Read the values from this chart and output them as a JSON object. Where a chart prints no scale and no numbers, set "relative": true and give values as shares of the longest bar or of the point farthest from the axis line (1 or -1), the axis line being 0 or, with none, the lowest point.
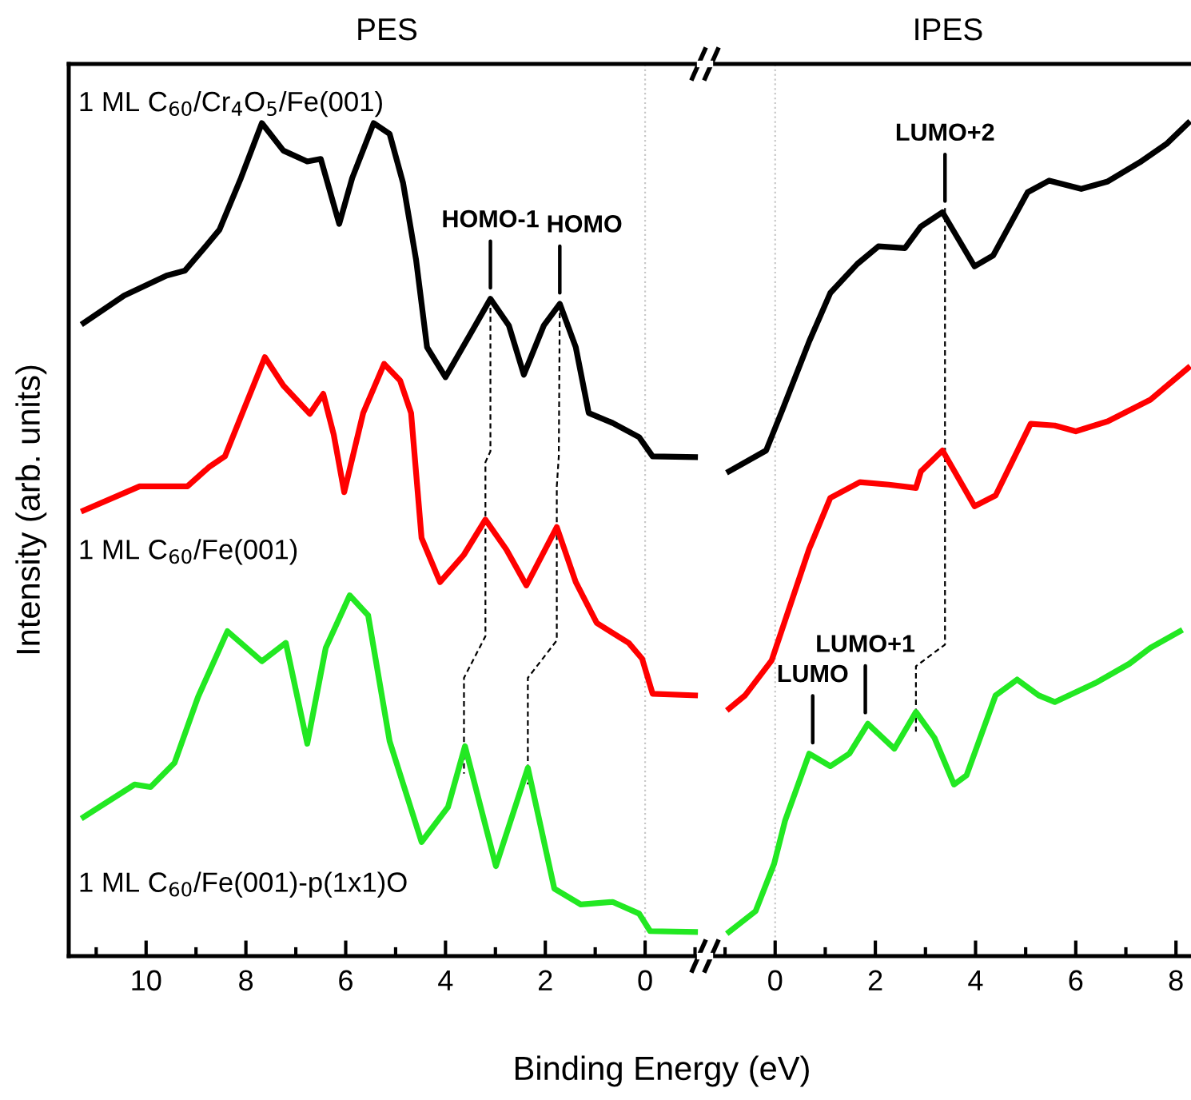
{
  "chart_data": [
    {
      "type": "line",
      "title": "PES",
      "xlabel": "Binding Energy (eV)",
      "ylabel": "Intensity (arb. units)",
      "relative": true,
      "xlim": [
        11.55,
        -1.2
      ],
      "xticks": [
        10,
        8,
        6,
        4,
        2,
        0
      ],
      "tick_labels": "x",
      "legend": false,
      "ref_lines": [
        {
          "axis": "x",
          "value": 0,
          "color": "#c8c8c8",
          "line_style": "dotted"
        }
      ],
      "annotations": [
        {
          "text": "HOMO-1",
          "x": 3.1,
          "y": 0.789
        },
        {
          "text": "HOMO",
          "x": 1.71,
          "y": 0.783
        }
      ],
      "series": [
        {
          "name": "1 ML C$_{60}$/Cr$_{4}$O$_{5}$/Fe(001)",
          "color": "#000000",
          "x": [
            11.25,
            10.44,
            9.59,
            9.22,
            8.85,
            8.53,
            8.1,
            7.68,
            7.25,
            6.77,
            6.5,
            6.13,
            5.87,
            5.44,
            5.12,
            4.85,
            4.59,
            4.37,
            4.0,
            3.52,
            3.1,
            2.73,
            2.43,
            2.03,
            1.71,
            1.39,
            1.13,
            0.65,
            0.12,
            -0.15,
            -1.0
          ],
          "values": [
            0.76,
            0.793,
            0.817,
            0.823,
            0.849,
            0.872,
            0.934,
            1.0,
            0.967,
            0.954,
            0.957,
            0.879,
            0.934,
            1.0,
            0.987,
            0.928,
            0.836,
            0.731,
            0.695,
            0.745,
            0.789,
            0.757,
            0.698,
            0.757,
            0.783,
            0.731,
            0.652,
            0.64,
            0.623,
            0.6,
            0.599
          ]
        },
        {
          "name": "1 ML C$_{60}$/Fe(001)",
          "color": "#ff0000",
          "x": [
            11.25,
            10.13,
            9.17,
            8.74,
            8.42,
            7.62,
            7.25,
            6.72,
            6.45,
            6.24,
            6.03,
            5.65,
            5.23,
            4.91,
            4.69,
            4.48,
            4.11,
            3.63,
            3.2,
            2.78,
            2.38,
            1.77,
            1.39,
            0.97,
            0.33,
            0.06,
            -0.15,
            -1.0
          ],
          "values": [
            0.535,
            0.564,
            0.564,
            0.587,
            0.6,
            0.719,
            0.685,
            0.651,
            0.675,
            0.626,
            0.557,
            0.652,
            0.711,
            0.691,
            0.652,
            0.502,
            0.449,
            0.482,
            0.524,
            0.488,
            0.445,
            0.515,
            0.449,
            0.4,
            0.376,
            0.357,
            0.315,
            0.313
          ]
        },
        {
          "name": "1 ML C$_{60}$/Fe(001)-p(1x1)O",
          "color": "#22e822",
          "x": [
            11.25,
            10.23,
            9.91,
            9.43,
            8.96,
            8.37,
            7.68,
            7.2,
            6.77,
            6.4,
            5.92,
            5.55,
            5.12,
            4.48,
            3.95,
            3.61,
            2.99,
            2.35,
            1.82,
            1.29,
            0.65,
            0.12,
            -0.1,
            -1.0
          ],
          "values": [
            0.167,
            0.206,
            0.203,
            0.232,
            0.311,
            0.39,
            0.354,
            0.376,
            0.255,
            0.37,
            0.433,
            0.409,
            0.258,
            0.137,
            0.179,
            0.252,
            0.108,
            0.226,
            0.081,
            0.062,
            0.065,
            0.051,
            0.03,
            0.029
          ]
        },
        {
          "color": "#000000",
          "line_style": "dashed",
          "x": [
            3.1,
            3.1,
            3.2,
            3.2,
            3.63,
            3.63
          ],
          "values": [
            0.789,
            0.606,
            0.593,
            0.384,
            0.334,
            0.219
          ]
        },
        {
          "color": "#000000",
          "line_style": "dashed",
          "x": [
            1.71,
            1.73,
            1.77,
            1.77,
            2.35,
            2.35
          ],
          "values": [
            0.783,
            0.6,
            0.564,
            0.379,
            0.334,
            0.206
          ]
        }
      ]
    },
    {
      "type": "line",
      "title": "IPES",
      "relative": true,
      "xlim": [
        -1.4,
        8.3
      ],
      "xticks": [
        0,
        2,
        4,
        6,
        8
      ],
      "tick_labels": "x",
      "legend": false,
      "ref_lines": [
        {
          "axis": "x",
          "value": 0,
          "color": "#c8c8c8",
          "line_style": "dotted"
        }
      ],
      "annotations": [
        {
          "text": "LUMO+2",
          "x": 3.39,
          "y": 0.893
        },
        {
          "text": "LUMO",
          "x": 0.75,
          "y": 0.243
        },
        {
          "text": "LUMO+1",
          "x": 1.8,
          "y": 0.279
        }
      ],
      "series": [
        {
          "color": "#000000",
          "x": [
            -0.92,
            -0.18,
            0.14,
            0.68,
            1.1,
            1.64,
            2.06,
            2.59,
            2.91,
            3.34,
            3.98,
            4.35,
            5.04,
            5.47,
            6.11,
            6.64,
            7.28,
            7.81,
            8.24
          ],
          "values": [
            0.582,
            0.607,
            0.655,
            0.738,
            0.796,
            0.831,
            0.852,
            0.85,
            0.876,
            0.893,
            0.828,
            0.841,
            0.917,
            0.931,
            0.921,
            0.93,
            0.953,
            0.975,
            1.0
          ]
        },
        {
          "color": "#ff0000",
          "x": [
            -0.92,
            -0.6,
            -0.07,
            0.68,
            1.1,
            1.69,
            2.27,
            2.81,
            2.91,
            3.34,
            3.98,
            4.4,
            5.1,
            5.58,
            6.0,
            6.64,
            7.49,
            8.24
          ],
          "values": [
            0.297,
            0.313,
            0.355,
            0.489,
            0.55,
            0.569,
            0.566,
            0.562,
            0.582,
            0.607,
            0.54,
            0.553,
            0.639,
            0.637,
            0.63,
            0.642,
            0.668,
            0.706
          ]
        },
        {
          "color": "#22e822",
          "x": [
            -0.92,
            -0.39,
            -0.02,
            0.2,
            0.68,
            1.1,
            1.48,
            1.85,
            2.38,
            2.81,
            3.18,
            3.57,
            3.82,
            4.4,
            4.83,
            5.26,
            5.58,
            6.43,
            7.07,
            7.49,
            8.08
          ],
          "values": [
            0.029,
            0.054,
            0.111,
            0.163,
            0.243,
            0.228,
            0.243,
            0.279,
            0.249,
            0.293,
            0.262,
            0.206,
            0.217,
            0.313,
            0.332,
            0.313,
            0.305,
            0.329,
            0.351,
            0.37,
            0.39
          ]
        },
        {
          "color": "#000000",
          "line_style": "dashed",
          "x": [
            3.39,
            3.39,
            2.81,
            2.81
          ],
          "values": [
            0.898,
            0.374,
            0.348,
            0.265
          ]
        }
      ]
    }
  ]
}
